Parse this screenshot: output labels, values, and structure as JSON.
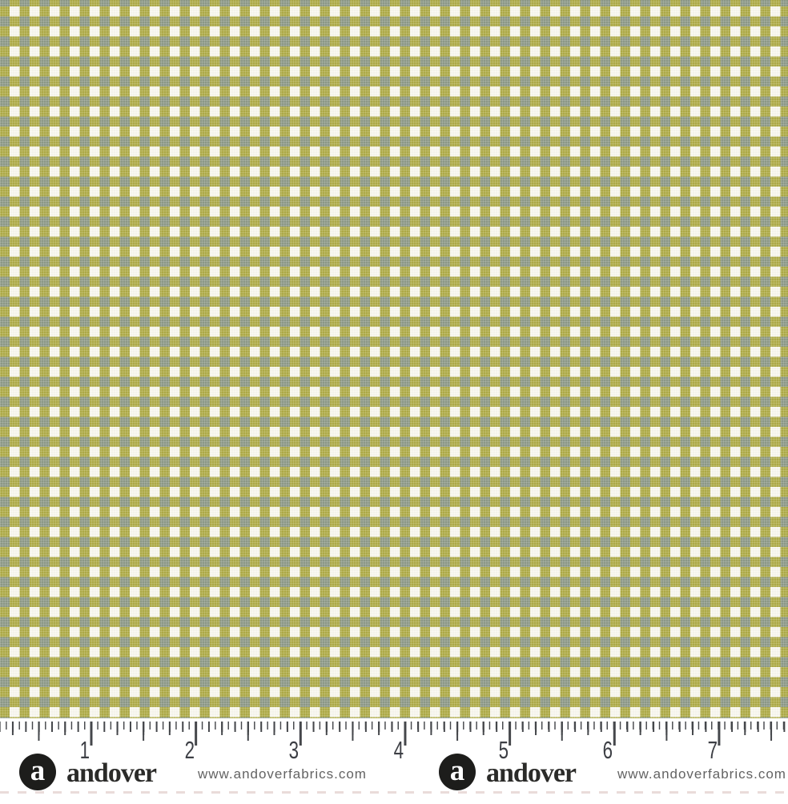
{
  "theme": {
    "page-white": "#ffffff",
    "gingham-green": "#b1ae48",
    "gingham-overlap": "#8f9b8a",
    "gingham-white": "#fbfaf1",
    "ruler-tick": "#45474b",
    "ruler-number": "#3d3f45",
    "logo-black": "#1d1d1b",
    "wordmark-black": "#2b2b29",
    "website-gray": "#636363",
    "selvage-pink": "#eadcda"
  },
  "fabric": {
    "description": "Green and white gingham check fabric swatch"
  },
  "ruler": {
    "unit_labels": [
      "1",
      "2",
      "3",
      "4",
      "5",
      "6",
      "7"
    ]
  },
  "branding": {
    "logo_letter": "a",
    "wordmark": "andover",
    "website": "www.andoverfabrics.com"
  }
}
